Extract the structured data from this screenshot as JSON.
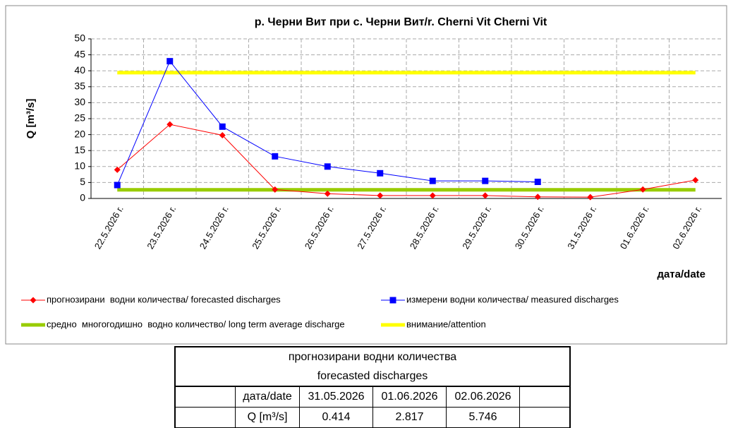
{
  "chart_data": {
    "type": "line",
    "title": "р. Черни Вит при с. Черни Вит/r. Cherni Vit Cherni Vit",
    "y_label": "Q [m³/s]",
    "x_label": "дата/date",
    "categories": [
      "22.5.2026 г.",
      "23.5.2026 г.",
      "24.5.2026 г.",
      "25.5.2026 г.",
      "26.5.2026 г.",
      "27.5.2026 г.",
      "28.5.2026 г.",
      "29.5.2026 г.",
      "30.5.2026 г.",
      "31.5.2026 г.",
      "01.6.2026 г.",
      "02.6.2026 г."
    ],
    "series": [
      {
        "name": "прогнозирани  водни количества/ forecasted discharges",
        "color": "#ff0000",
        "marker": "diamond",
        "width": 1,
        "values": [
          9,
          23.2,
          19.8,
          2.8,
          1.5,
          0.9,
          0.9,
          0.9,
          0.5,
          0.414,
          2.817,
          5.746
        ]
      },
      {
        "name": "измерени водни количества/ measured discharges",
        "color": "#0000ff",
        "marker": "square",
        "width": 1,
        "values": [
          4.2,
          43,
          22.5,
          13.2,
          10,
          7.9,
          5.5,
          5.5,
          5.2,
          null,
          null,
          null
        ]
      },
      {
        "name": "средно  многогодишно  водно количество/ long term average discharge",
        "color": "#99cc00",
        "width": 5,
        "values": [
          2.7,
          2.7,
          2.7,
          2.7,
          2.7,
          2.7,
          2.7,
          2.7,
          2.7,
          2.7,
          2.7,
          2.7
        ]
      },
      {
        "name": "внимание/attention",
        "color": "#ffff00",
        "width": 5,
        "values": [
          39.4,
          39.4,
          39.4,
          39.4,
          39.4,
          39.4,
          39.4,
          39.4,
          39.4,
          39.4,
          39.4,
          39.4
        ]
      }
    ],
    "ylim": [
      0,
      50
    ],
    "yticks": [
      0,
      5,
      10,
      15,
      20,
      25,
      30,
      35,
      40,
      45,
      50
    ],
    "grid": true
  },
  "table": {
    "title": [
      "прогнозирани водни количества",
      "forecasted discharges"
    ],
    "rows": [
      [
        "дата/date",
        "31.05.2026",
        "01.06.2026",
        "02.06.2026"
      ],
      [
        "Q [m³/s]",
        0.414,
        2.817,
        5.746
      ]
    ]
  }
}
